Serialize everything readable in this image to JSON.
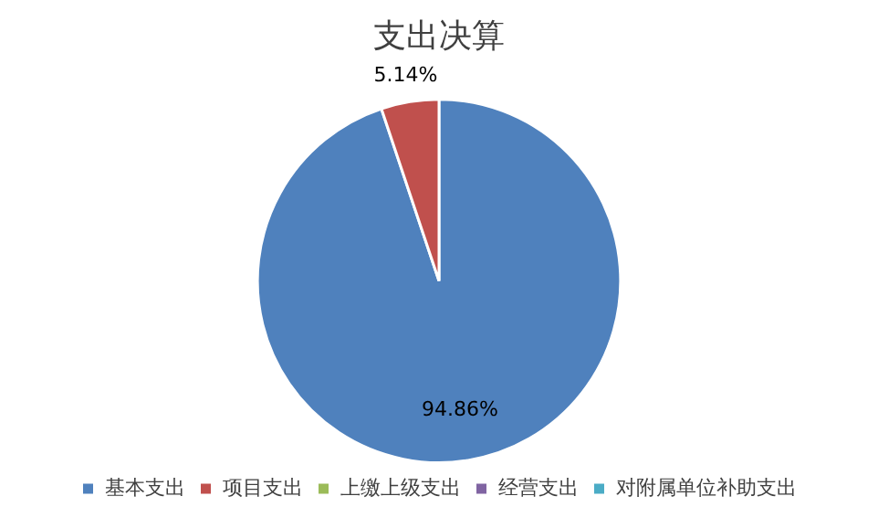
{
  "chart_data": {
    "type": "pie",
    "title": "支出决算",
    "categories": [
      "基本支出",
      "项目支出",
      "上缴上级支出",
      "经营支出",
      "对附属单位补助支出"
    ],
    "values": [
      94.86,
      5.14,
      0,
      0,
      0
    ],
    "colors": [
      "#4f81bd",
      "#c0504d",
      "#9bbb59",
      "#8064a2",
      "#4bacc6"
    ],
    "value_labels": [
      "94.86%",
      "5.14%",
      null,
      null,
      null
    ],
    "legend": "bottom"
  }
}
